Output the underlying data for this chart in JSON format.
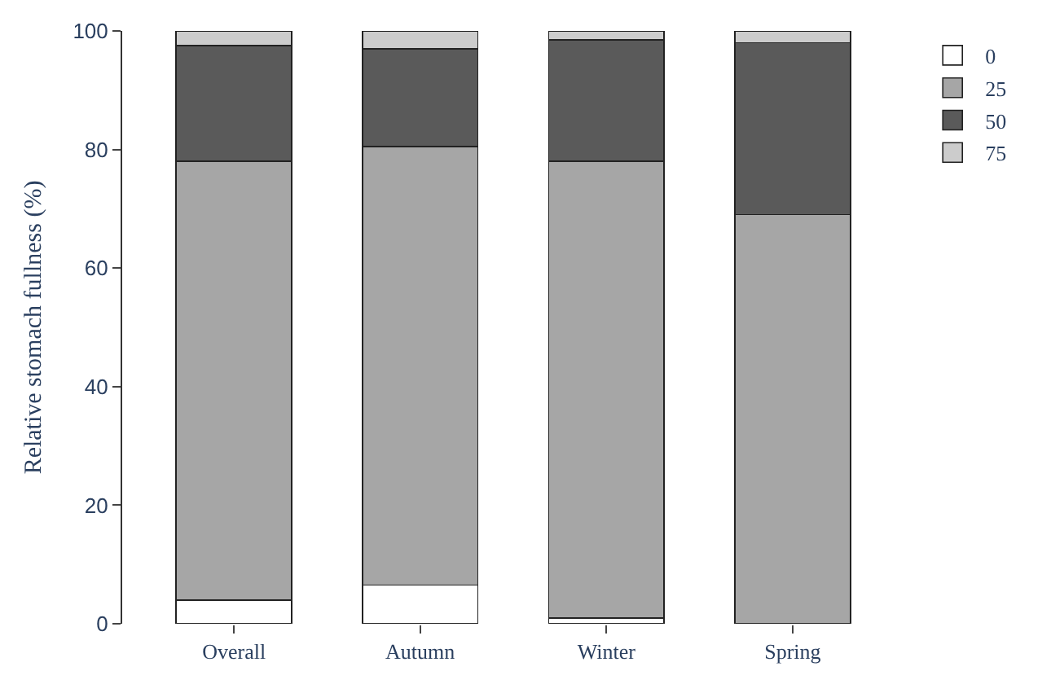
{
  "chart_data": {
    "type": "bar",
    "stacked": true,
    "ylabel": "Relative stomach fullness (%)",
    "categories": [
      "Overall",
      "Autumn",
      "Winter",
      "Spring"
    ],
    "series": [
      {
        "name": "0",
        "color": "#ffffff",
        "values": [
          4,
          6.5,
          1,
          0
        ]
      },
      {
        "name": "25",
        "color": "#a6a6a6",
        "values": [
          74,
          74,
          77,
          69
        ]
      },
      {
        "name": "50",
        "color": "#5a5a5a",
        "values": [
          19.5,
          16.5,
          20.5,
          29
        ]
      },
      {
        "name": "75",
        "color": "#cccccc",
        "values": [
          2.5,
          3,
          1.5,
          2
        ]
      }
    ],
    "ylim": [
      0,
      100
    ],
    "yticks": [
      0,
      20,
      40,
      60,
      80,
      100
    ],
    "legend": "top right"
  }
}
